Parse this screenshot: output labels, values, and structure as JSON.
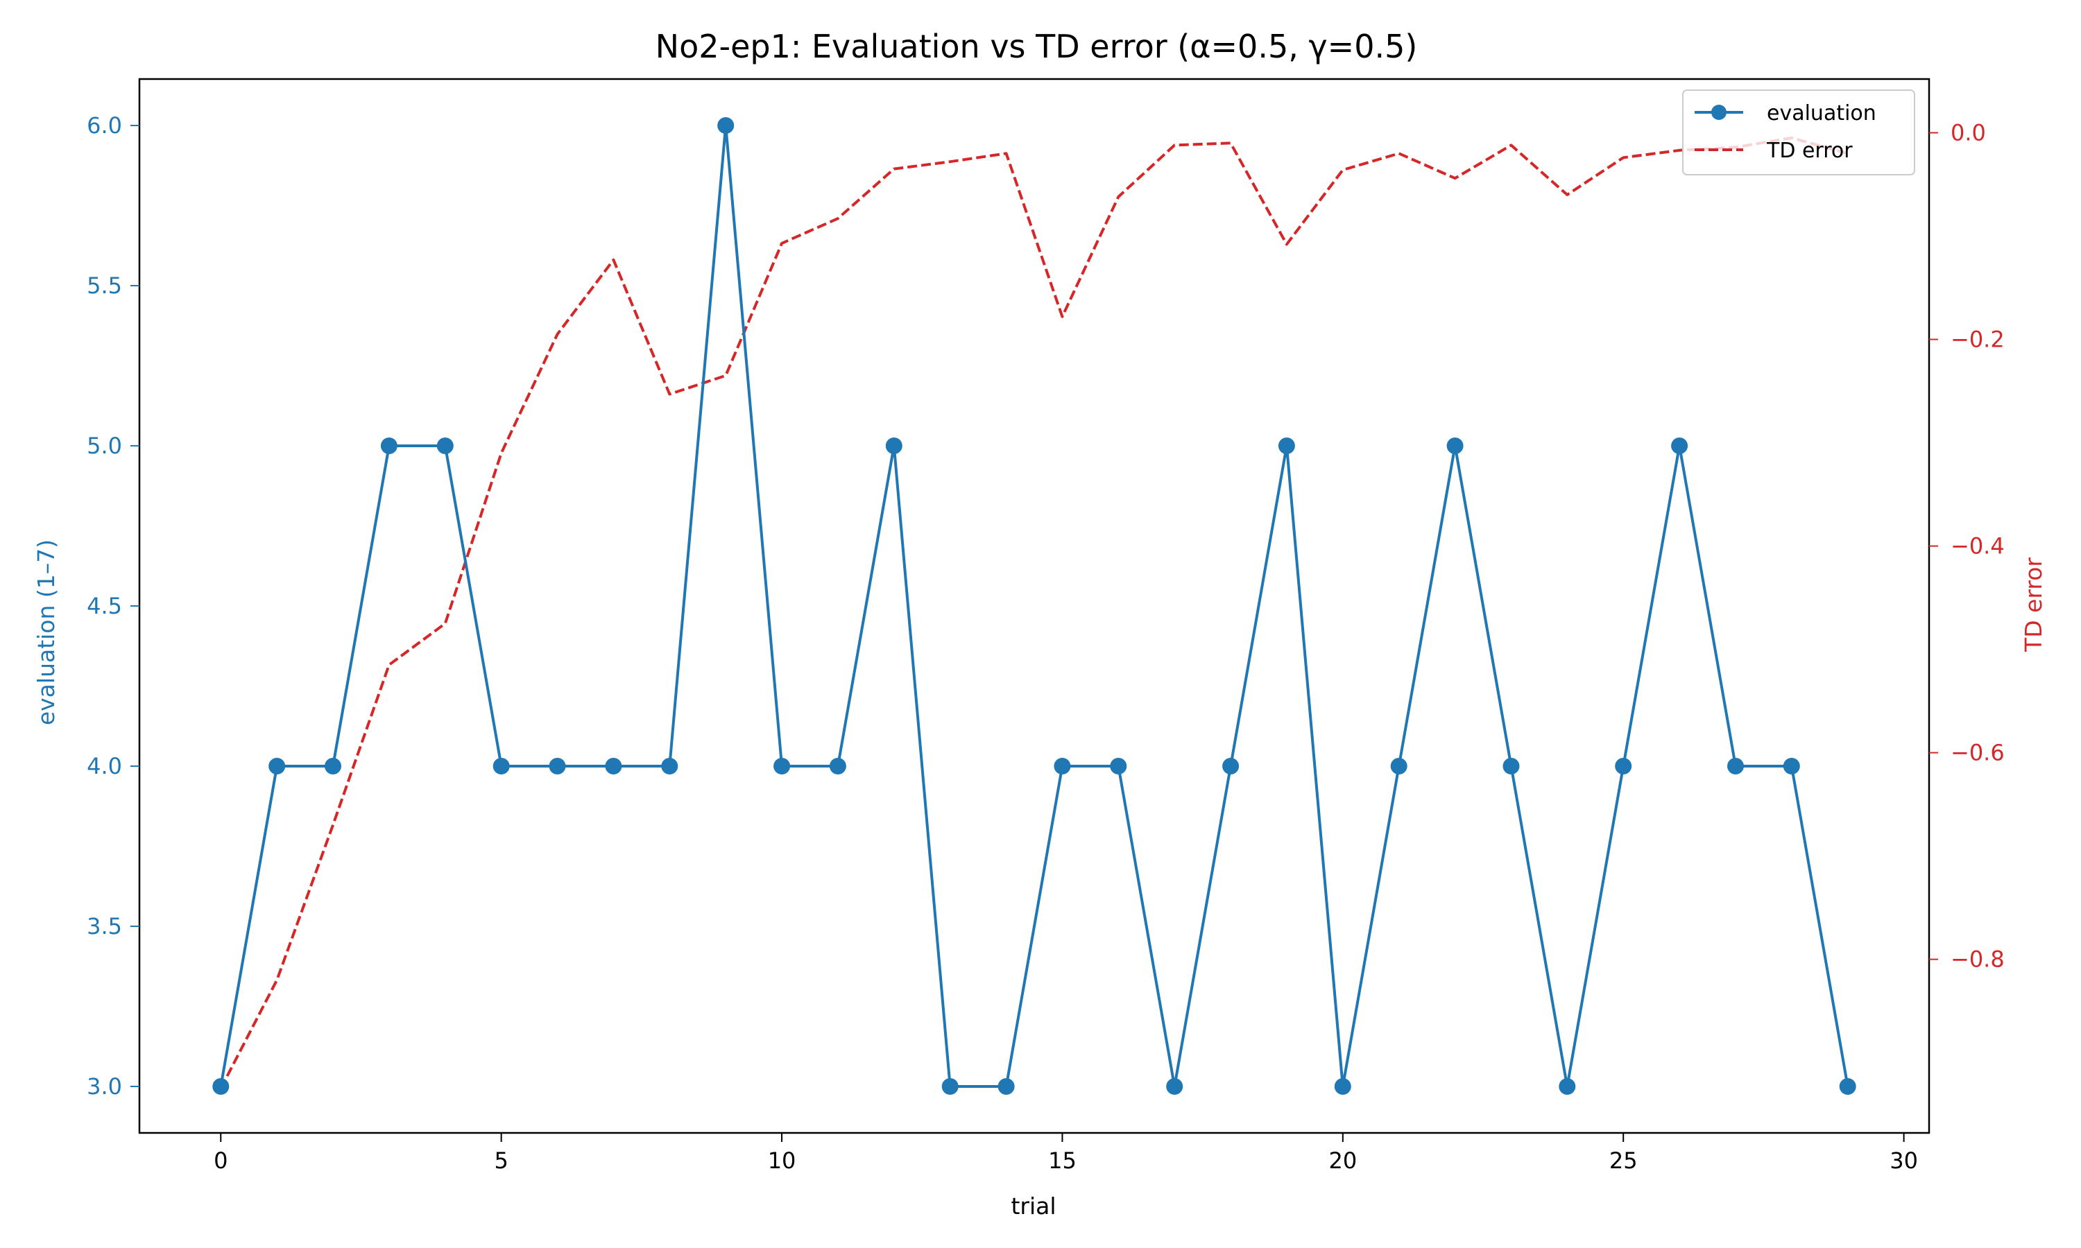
{
  "chart_data": {
    "type": "line",
    "title": "No2-ep1: Evaluation vs TD error (α=0.5, γ=0.5)",
    "xlabel": "trial",
    "ylabel_left": "evaluation (1–7)",
    "ylabel_right": "TD error",
    "x": [
      0,
      1,
      2,
      3,
      4,
      5,
      6,
      7,
      8,
      9,
      10,
      11,
      12,
      13,
      14,
      15,
      16,
      17,
      18,
      19,
      20,
      21,
      22,
      23,
      24,
      25,
      26,
      27,
      28,
      29
    ],
    "xlim": [
      -1.45,
      30.45
    ],
    "xticks": [
      0,
      5,
      10,
      15,
      20,
      25,
      30
    ],
    "ylim_left": [
      2.855,
      6.145
    ],
    "yticks_left": [
      "3.0",
      "3.5",
      "4.0",
      "4.5",
      "5.0",
      "5.5",
      "6.0"
    ],
    "ylim_right": [
      -0.968,
      0.052
    ],
    "yticks_right": [
      "−0.8",
      "−0.6",
      "−0.4",
      "−0.2",
      "0.0"
    ],
    "grid": false,
    "legend_position": "top-right",
    "colors": {
      "evaluation": "#1f77b4",
      "td_error": "#d62728",
      "axes": "#000000"
    },
    "series": [
      {
        "name": "evaluation",
        "axis": "left",
        "style": "solid line with circle markers",
        "color": "#1f77b4",
        "values": [
          3,
          4,
          4,
          5,
          5,
          4,
          4,
          4,
          4,
          6,
          4,
          4,
          5,
          3,
          3,
          4,
          4,
          3,
          4,
          5,
          3,
          4,
          5,
          4,
          3,
          4,
          5,
          4,
          4,
          3
        ]
      },
      {
        "name": "TD error",
        "axis": "right",
        "style": "dashed line",
        "color": "#d62728",
        "values": [
          -0.925,
          -0.82,
          -0.67,
          -0.515,
          -0.475,
          -0.31,
          -0.195,
          -0.123,
          -0.253,
          -0.235,
          -0.107,
          -0.083,
          -0.035,
          -0.028,
          -0.02,
          -0.178,
          -0.062,
          -0.012,
          -0.01,
          -0.108,
          -0.036,
          -0.02,
          -0.044,
          -0.012,
          -0.06,
          -0.024,
          -0.017,
          -0.014,
          -0.005,
          -0.02
        ]
      }
    ]
  }
}
